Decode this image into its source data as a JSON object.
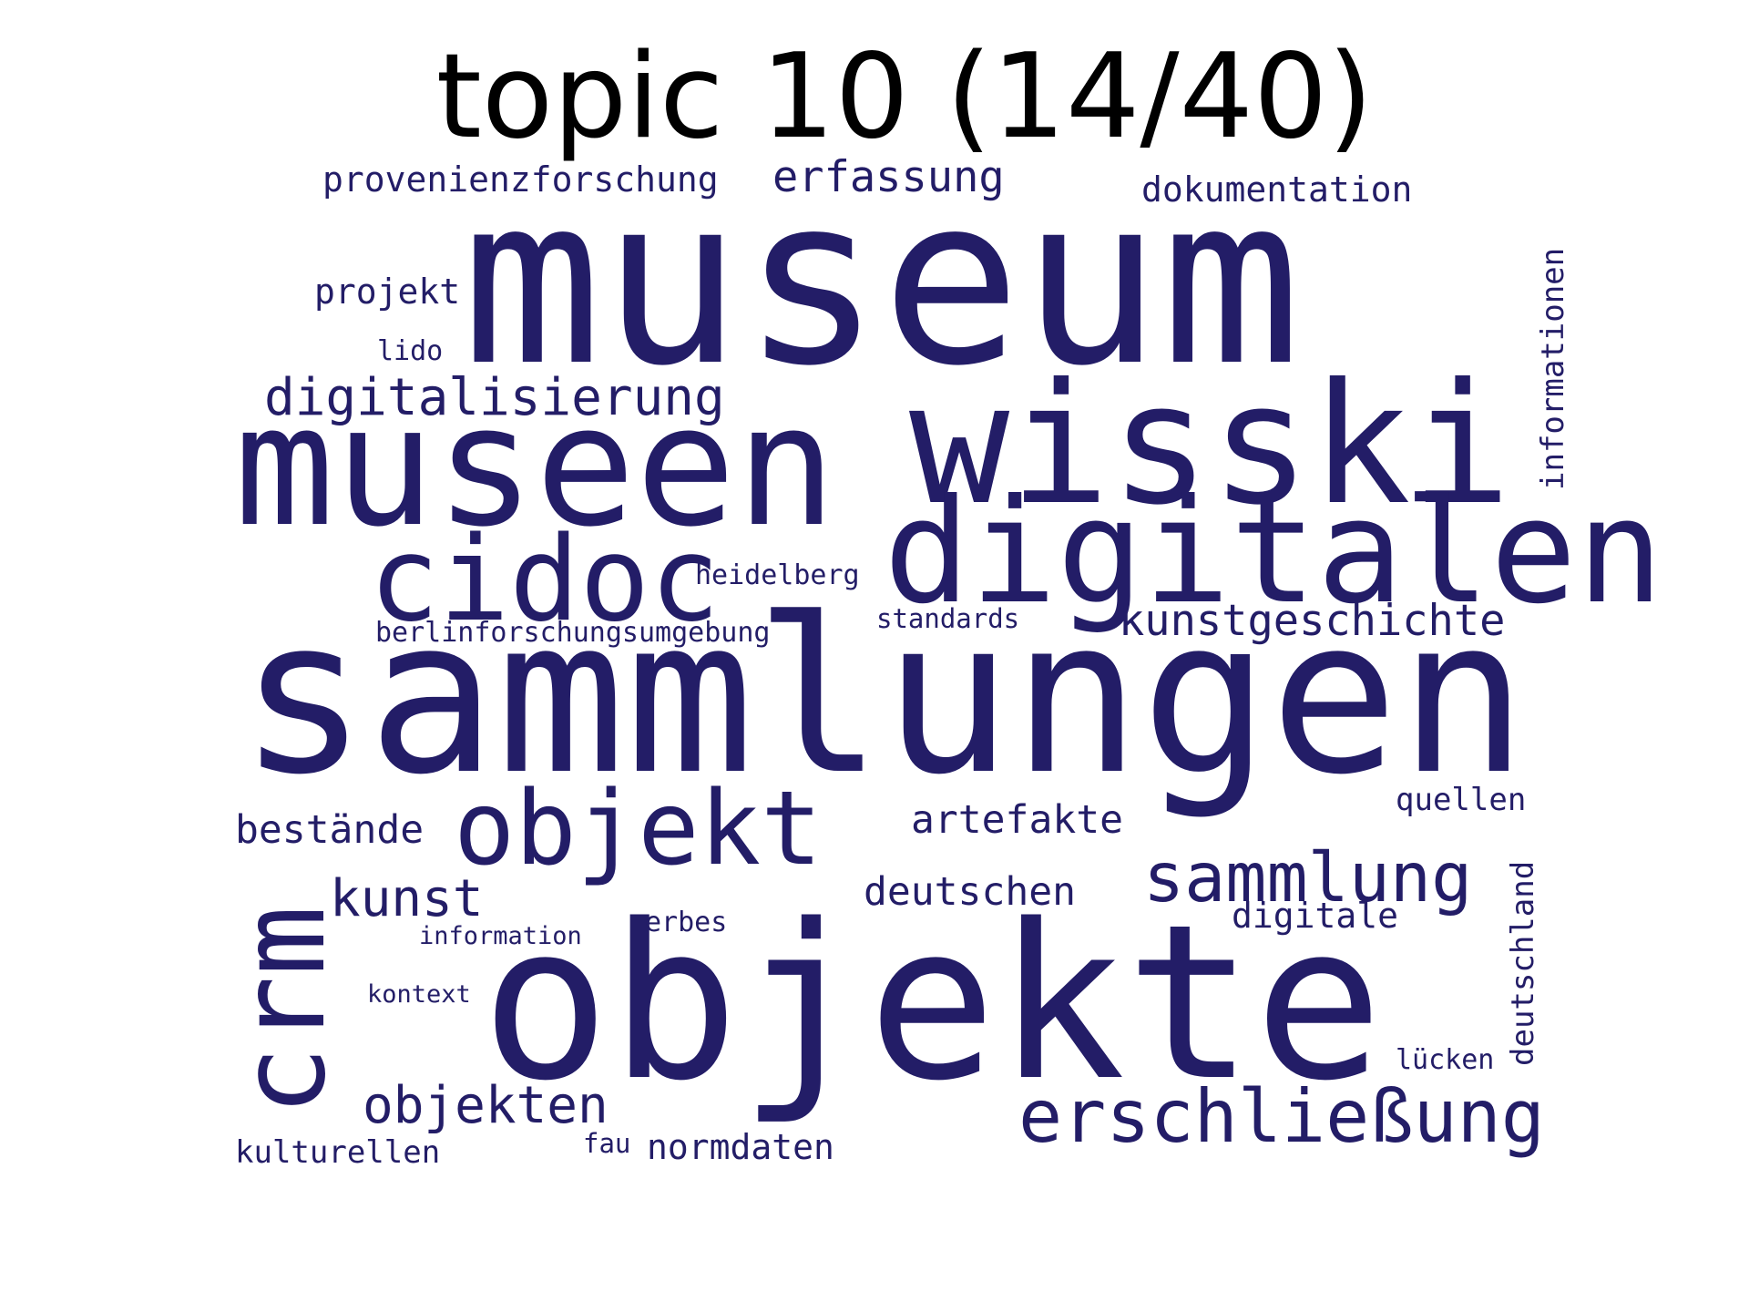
{
  "title": "topic 10 (14/40)",
  "word_color": "#231d67",
  "title_color": "#000000",
  "words": [
    "museum",
    "sammlungen",
    "objekte",
    "museen",
    "wisski",
    "digitalen",
    "cidoc",
    "crm",
    "objekt",
    "erschließung",
    "sammlung",
    "digitalisierung",
    "objekten",
    "kunst",
    "kunstgeschichte",
    "erfassung",
    "provenienzforschung",
    "dokumentation",
    "projekt",
    "bestände",
    "artefakte",
    "deutschen",
    "informationen",
    "deutschland",
    "quellen",
    "digitale",
    "normdaten",
    "kulturellen",
    "heidelberg",
    "berlinforschungsumgebung",
    "standards",
    "lido",
    "information",
    "erbes",
    "kontext",
    "lücken",
    "fau"
  ]
}
